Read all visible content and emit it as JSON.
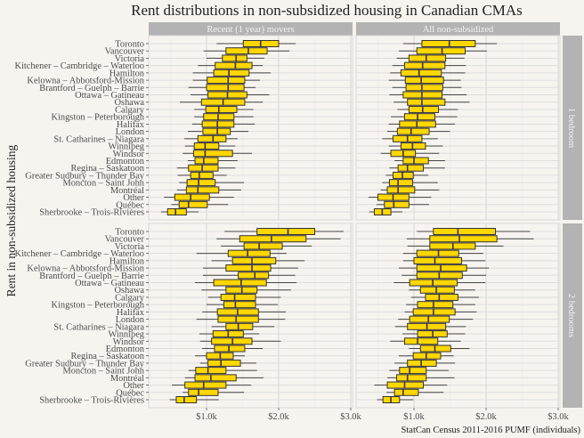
{
  "chart_data": {
    "type": "boxplot",
    "title": "Rent distributions in non-subsidized housing in Canadian CMAs",
    "ylabel": "Rent in non-subsidized housing",
    "xlabel": "",
    "caption": "StatCan Census 2011-2016 PUMF (individuals)",
    "x_ticks": [
      1000,
      2000,
      3000
    ],
    "x_tick_labels": [
      "$1.0k",
      "$2.0k",
      "$3.0k"
    ],
    "xlim": [
      200,
      3000
    ],
    "grid": true,
    "box_fill": "#FFD700",
    "box_stroke": "#333333",
    "strip_color": "#b3b3b3",
    "column_facets": [
      "Recent (1 year) movers",
      "All non-subsidized"
    ],
    "row_facets": [
      "1 bedroom",
      "2 bedrooms"
    ],
    "categories": [
      "Toronto",
      "Vancouver",
      "Victoria",
      "Kitchener – Cambridge – Waterloo",
      "Hamilton",
      "Kelowna – Abbotsford-Mission",
      "Brantford – Guelph – Barrie",
      "Ottawa – Gatineau",
      "Oshawa",
      "Calgary",
      "Kingston – Peterborough",
      "Halifax",
      "London",
      "St. Catharines – Niagara",
      "Winnipeg",
      "Windsor",
      "Edmonton",
      "Regina – Saskatoon",
      "Greater Sudbury – Thunder Bay",
      "Moncton – Saint John",
      "Montréal",
      "Other",
      "Québec",
      "Sherbrooke – Trois-Rivières"
    ],
    "stats_order": [
      "whisker_low",
      "q1",
      "median",
      "q3",
      "whisker_high"
    ],
    "panels": [
      {
        "row": "1 bedroom",
        "col": "Recent (1 year) movers",
        "boxes": [
          [
            1140,
            1510,
            1750,
            2000,
            2235
          ],
          [
            960,
            1270,
            1580,
            1840,
            2150
          ],
          [
            1000,
            1220,
            1410,
            1560,
            1800
          ],
          [
            880,
            1120,
            1400,
            1630,
            1780
          ],
          [
            810,
            1100,
            1310,
            1590,
            1890
          ],
          [
            810,
            1010,
            1300,
            1530,
            1740
          ],
          [
            750,
            1000,
            1300,
            1520,
            1680
          ],
          [
            780,
            1020,
            1290,
            1560,
            1870
          ],
          [
            630,
            930,
            1230,
            1530,
            1780
          ],
          [
            830,
            990,
            1170,
            1420,
            1650
          ],
          [
            830,
            960,
            1160,
            1380,
            1650
          ],
          [
            800,
            940,
            1150,
            1380,
            1670
          ],
          [
            740,
            950,
            1150,
            1330,
            1580
          ],
          [
            690,
            880,
            1090,
            1270,
            1430
          ],
          [
            700,
            830,
            980,
            1170,
            1400
          ],
          [
            670,
            820,
            980,
            1360,
            1630
          ],
          [
            740,
            840,
            960,
            1160,
            1430
          ],
          [
            590,
            750,
            940,
            1160,
            1400
          ],
          [
            600,
            780,
            900,
            1090,
            1280
          ],
          [
            620,
            730,
            890,
            1120,
            1520
          ],
          [
            590,
            720,
            880,
            1170,
            1480
          ],
          [
            410,
            560,
            780,
            1040,
            1380
          ],
          [
            510,
            620,
            750,
            1010,
            1300
          ],
          [
            370,
            460,
            570,
            720,
            890
          ]
        ]
      },
      {
        "row": "1 bedroom",
        "col": "All non-subsidized",
        "boxes": [
          [
            850,
            1110,
            1490,
            1850,
            2150
          ],
          [
            790,
            1040,
            1390,
            1710,
            2010
          ],
          [
            760,
            930,
            1170,
            1440,
            1700
          ],
          [
            700,
            870,
            1120,
            1430,
            1720
          ],
          [
            670,
            820,
            1070,
            1380,
            1710
          ],
          [
            650,
            880,
            1100,
            1410,
            1650
          ],
          [
            700,
            890,
            1110,
            1400,
            1660
          ],
          [
            660,
            850,
            1110,
            1390,
            1730
          ],
          [
            720,
            910,
            1110,
            1430,
            1770
          ],
          [
            770,
            930,
            1120,
            1340,
            1610
          ],
          [
            680,
            870,
            1050,
            1290,
            1600
          ],
          [
            650,
            800,
            1040,
            1300,
            1570
          ],
          [
            630,
            770,
            960,
            1210,
            1500
          ],
          [
            560,
            710,
            910,
            1110,
            1330
          ],
          [
            650,
            820,
            980,
            1160,
            1400
          ],
          [
            540,
            680,
            850,
            1020,
            1350
          ],
          [
            730,
            850,
            1000,
            1200,
            1430
          ],
          [
            660,
            780,
            910,
            1130,
            1430
          ],
          [
            610,
            710,
            840,
            990,
            1200
          ],
          [
            560,
            660,
            780,
            980,
            1330
          ],
          [
            540,
            630,
            780,
            1010,
            1350
          ],
          [
            370,
            500,
            710,
            930,
            1240
          ],
          [
            480,
            590,
            720,
            930,
            1210
          ],
          [
            380,
            450,
            560,
            680,
            840
          ]
        ]
      },
      {
        "row": "2 bedrooms",
        "col": "Recent (1 year) movers",
        "boxes": [
          [
            1250,
            1700,
            2130,
            2500,
            2900
          ],
          [
            1140,
            1460,
            1900,
            2380,
            2860
          ],
          [
            1200,
            1520,
            1730,
            2050,
            2460
          ],
          [
            860,
            1300,
            1570,
            1880,
            2110
          ],
          [
            1070,
            1360,
            1630,
            1960,
            2360
          ],
          [
            950,
            1270,
            1630,
            1890,
            2270
          ],
          [
            950,
            1440,
            1670,
            1860,
            2230
          ],
          [
            840,
            1100,
            1480,
            1830,
            2250
          ],
          [
            930,
            1270,
            1490,
            1700,
            2170
          ],
          [
            1020,
            1200,
            1390,
            1680,
            2030
          ],
          [
            1000,
            1240,
            1400,
            1680,
            1990
          ],
          [
            940,
            1150,
            1430,
            1720,
            2100
          ],
          [
            860,
            1160,
            1410,
            1720,
            2090
          ],
          [
            1070,
            1270,
            1440,
            1640,
            1940
          ],
          [
            900,
            1090,
            1300,
            1510,
            1730
          ],
          [
            910,
            1070,
            1360,
            1630,
            2030
          ],
          [
            940,
            1110,
            1310,
            1530,
            1780
          ],
          [
            840,
            1000,
            1190,
            1370,
            1530
          ],
          [
            910,
            1020,
            1200,
            1470,
            1690
          ],
          [
            750,
            850,
            1020,
            1270,
            1700
          ],
          [
            700,
            840,
            1060,
            1410,
            1790
          ],
          [
            520,
            700,
            960,
            1270,
            1620
          ],
          [
            670,
            750,
            890,
            1160,
            1520
          ],
          [
            490,
            580,
            690,
            860,
            1170
          ]
        ]
      },
      {
        "row": "2 bedrooms",
        "col": "All non-subsidized",
        "boxes": [
          [
            1040,
            1270,
            1610,
            2130,
            2610
          ],
          [
            900,
            1220,
            1630,
            2150,
            2660
          ],
          [
            910,
            1220,
            1540,
            1850,
            2240
          ],
          [
            850,
            1040,
            1340,
            1620,
            1960
          ],
          [
            850,
            1000,
            1290,
            1660,
            1990
          ],
          [
            790,
            1040,
            1370,
            1730,
            2040
          ],
          [
            830,
            1040,
            1350,
            1670,
            2000
          ],
          [
            720,
            940,
            1260,
            1600,
            1990
          ],
          [
            930,
            1090,
            1310,
            1560,
            1850
          ],
          [
            960,
            1160,
            1350,
            1610,
            1900
          ],
          [
            890,
            1050,
            1270,
            1540,
            1850
          ],
          [
            870,
            990,
            1270,
            1570,
            1870
          ],
          [
            780,
            940,
            1200,
            1490,
            1820
          ],
          [
            740,
            910,
            1180,
            1440,
            1720
          ],
          [
            840,
            1050,
            1260,
            1460,
            1710
          ],
          [
            670,
            870,
            1050,
            1330,
            1650
          ],
          [
            930,
            1090,
            1290,
            1510,
            1770
          ],
          [
            790,
            990,
            1170,
            1370,
            1550
          ],
          [
            730,
            910,
            1100,
            1310,
            1570
          ],
          [
            660,
            800,
            940,
            1170,
            1480
          ],
          [
            630,
            760,
            910,
            1170,
            1560
          ],
          [
            450,
            630,
            870,
            1130,
            1460
          ],
          [
            620,
            730,
            850,
            1060,
            1410
          ],
          [
            490,
            570,
            680,
            800,
            990
          ]
        ]
      }
    ]
  }
}
